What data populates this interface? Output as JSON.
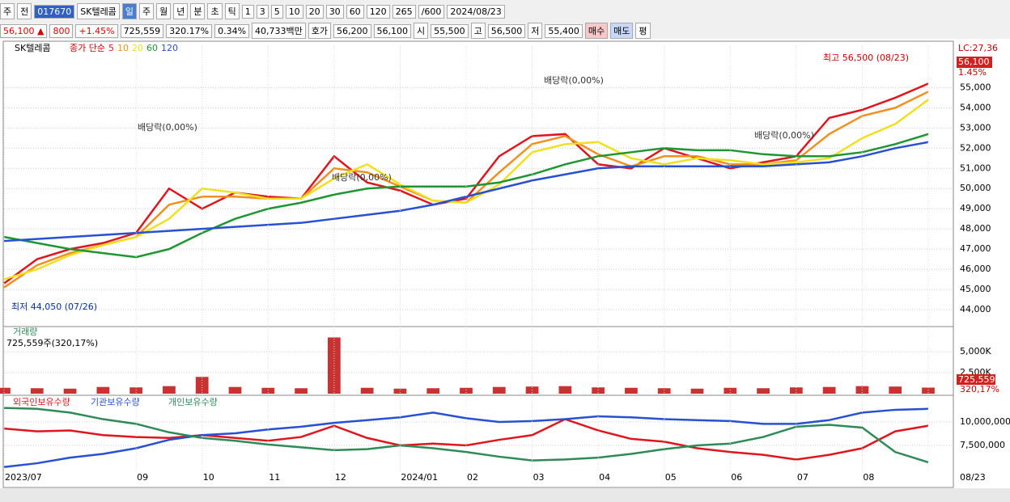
{
  "toolbar": {
    "items": [
      "주",
      "전",
      "017670",
      "SK텔레콤",
      "일",
      "주",
      "월",
      "년",
      "분",
      "초",
      "틱",
      "1",
      "3",
      "5",
      "10",
      "20",
      "30",
      "60",
      "120",
      "265",
      "/600",
      "2024/08/23"
    ]
  },
  "info_bar": {
    "items": [
      "56,100 ▲",
      "800",
      "+1.45%",
      "725,559",
      "320.17%",
      "0.34%",
      "40,733백만",
      "호가",
      "56,200",
      "56,100",
      "시",
      "55,500",
      "고",
      "56,500",
      "저",
      "55,400",
      "매수",
      "매도",
      "평"
    ]
  },
  "chart_data": [
    {
      "type": "line",
      "title": "SK텔레콤",
      "legend_prefix": "종가 단순",
      "high_label": "최고 56,500 (08/23)",
      "low_label": "최저 44,050 (07/26)",
      "ex_dividend_labels": [
        "배당락(0,00%)",
        "배당락(0,00%)",
        "배당락(0,00%)",
        "배당락(0,00%)"
      ],
      "right_labels": [
        "LC:27,36",
        "56,100",
        "1.45%"
      ],
      "ylim": [
        43200,
        57100
      ],
      "yticks": [
        {
          "value": 44000,
          "label": "44,000"
        },
        {
          "value": 45000,
          "label": "45,000"
        },
        {
          "value": 46000,
          "label": "46,000"
        },
        {
          "value": 47000,
          "label": "47,000"
        },
        {
          "value": 48000,
          "label": "48,000"
        },
        {
          "value": 49000,
          "label": "49,000"
        },
        {
          "value": 50000,
          "label": "50,000"
        },
        {
          "value": 51000,
          "label": "51,000"
        },
        {
          "value": 52000,
          "label": "52,000"
        },
        {
          "value": 53000,
          "label": "53,000"
        },
        {
          "value": 54000,
          "label": "54,000"
        },
        {
          "value": 55000,
          "label": "55,000"
        }
      ],
      "grid": true,
      "series": [
        {
          "name": "5",
          "color": "#e0161e",
          "values": [
            45300,
            46500,
            47000,
            47300,
            47800,
            50000,
            49000,
            49800,
            49600,
            49500,
            51600,
            50300,
            49900,
            49200,
            49500,
            51600,
            52600,
            52700,
            51200,
            51000,
            52000,
            51500,
            51000,
            51300,
            51600,
            53500,
            53900,
            54500,
            55200
          ]
        },
        {
          "name": "10",
          "color": "#f0901e",
          "values": [
            45100,
            46200,
            46800,
            47200,
            47600,
            49200,
            49600,
            49600,
            49500,
            49500,
            51000,
            50800,
            50100,
            49400,
            49300,
            50800,
            52200,
            52600,
            51700,
            51100,
            51600,
            51600,
            51200,
            51200,
            51400,
            52700,
            53600,
            54000,
            54800
          ]
        },
        {
          "name": "20",
          "color": "#f0e020",
          "values": [
            45500,
            46000,
            46700,
            47200,
            47600,
            48500,
            50000,
            49800,
            49500,
            49500,
            50500,
            51200,
            50200,
            49400,
            49300,
            50200,
            51800,
            52200,
            52300,
            51500,
            51200,
            51500,
            51400,
            51200,
            51300,
            51500,
            52500,
            53200,
            54400
          ]
        },
        {
          "name": "60",
          "color": "#1e9632",
          "values": [
            47600,
            47300,
            47000,
            46800,
            46600,
            47000,
            47800,
            48500,
            49000,
            49300,
            49700,
            50000,
            50100,
            50100,
            50100,
            50300,
            50700,
            51200,
            51600,
            51800,
            52000,
            51900,
            51900,
            51700,
            51600,
            51600,
            51800,
            52200,
            52700
          ]
        },
        {
          "name": "120",
          "color": "#2850d2",
          "values": [
            47400,
            47500,
            47600,
            47700,
            47800,
            47900,
            48000,
            48100,
            48200,
            48300,
            48500,
            48700,
            48900,
            49200,
            49600,
            50000,
            50400,
            50700,
            51000,
            51100,
            51100,
            51100,
            51100,
            51100,
            51200,
            51300,
            51600,
            52000,
            52300
          ]
        }
      ]
    },
    {
      "type": "bar",
      "title": "거래량",
      "subtitle": "725,559주(320,17%)",
      "right_labels": [
        "725,559",
        "320,17%"
      ],
      "color": "#c83232",
      "ylim": [
        0,
        7900000
      ],
      "yticks": [
        {
          "value": 2500000,
          "label": "2,500K"
        },
        {
          "value": 5000000,
          "label": "5,000K"
        }
      ],
      "grid": true,
      "values": [
        700000,
        650000,
        600000,
        800000,
        750000,
        900000,
        2000000,
        800000,
        700000,
        650000,
        6700000,
        700000,
        600000,
        650000,
        700000,
        800000,
        850000,
        900000,
        750000,
        700000,
        650000,
        600000,
        700000,
        650000,
        750000,
        800000,
        900000,
        850000,
        725559
      ]
    },
    {
      "type": "line",
      "ylim": [
        4830000,
        12760000
      ],
      "yticks": [
        {
          "value": 7500000,
          "label": "7,500,000"
        },
        {
          "value": 10000000,
          "label": "10,000,000"
        }
      ],
      "grid": true,
      "categories": [
        "2023/07",
        null,
        null,
        null,
        "09",
        null,
        "10",
        null,
        "11",
        null,
        "12",
        null,
        "2024/01",
        null,
        "02",
        null,
        "03",
        null,
        "04",
        null,
        "05",
        null,
        "06",
        null,
        "07",
        null,
        "08",
        null,
        "08/23"
      ],
      "series": [
        {
          "name": "외국인보유수량",
          "color": "#e0161e",
          "values": [
            9300000,
            9000000,
            9100000,
            8600000,
            8400000,
            8300000,
            8600000,
            8300000,
            8000000,
            8400000,
            9600000,
            8300000,
            7500000,
            7700000,
            7500000,
            8100000,
            8600000,
            10300000,
            9100000,
            8200000,
            7900000,
            7200000,
            6800000,
            6500000,
            6000000,
            6500000,
            7200000,
            9000000,
            9600000
          ]
        },
        {
          "name": "기관보유수량",
          "color": "#2850d2",
          "values": [
            5200000,
            5600000,
            6200000,
            6600000,
            7200000,
            8100000,
            8600000,
            8800000,
            9200000,
            9500000,
            9900000,
            10200000,
            10500000,
            11000000,
            10400000,
            10000000,
            10100000,
            10300000,
            10600000,
            10500000,
            10300000,
            10200000,
            10100000,
            9800000,
            9800000,
            10200000,
            11000000,
            11300000,
            11400000
          ]
        },
        {
          "name": "개인보유수량",
          "color": "#2e8b57",
          "values": [
            11500000,
            11400000,
            11000000,
            10300000,
            9800000,
            8900000,
            8300000,
            8000000,
            7600000,
            7300000,
            7000000,
            7100000,
            7500000,
            7200000,
            6800000,
            6300000,
            5900000,
            6000000,
            6200000,
            6600000,
            7100000,
            7500000,
            7700000,
            8400000,
            9500000,
            9700000,
            9400000,
            6800000,
            5700000
          ]
        }
      ]
    }
  ]
}
